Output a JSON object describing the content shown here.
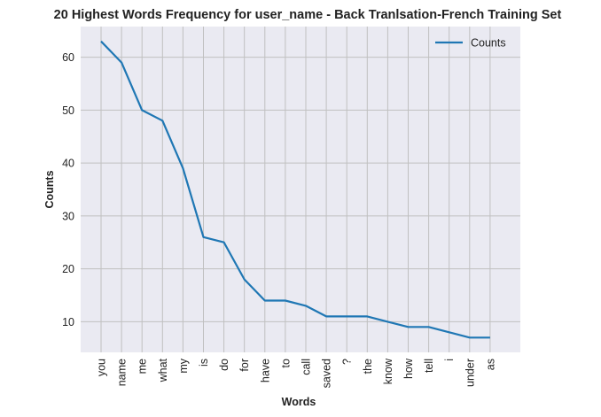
{
  "chart_data": {
    "type": "line",
    "title": "20 Highest Words Frequency for user_name - Back Tranlsation-French Training Set",
    "xlabel": "Words",
    "ylabel": "Counts",
    "categories": [
      "you",
      "name",
      "me",
      "what",
      "my",
      "is",
      "do",
      "for",
      "have",
      "to",
      "call",
      "saved",
      "?",
      "the",
      "know",
      "how",
      "tell",
      "i",
      "under",
      "as"
    ],
    "series": [
      {
        "name": "Counts",
        "values": [
          63,
          59,
          50,
          48,
          39,
          26,
          25,
          18,
          14,
          14,
          13,
          11,
          11,
          11,
          10,
          9,
          9,
          8,
          7,
          7
        ]
      }
    ],
    "yticks": [
      10,
      20,
      30,
      40,
      50,
      60
    ],
    "ylim": [
      4.2,
      65.8
    ],
    "grid": true,
    "legend_position": "top-right",
    "colors": {
      "line": "#1f77b4",
      "plot_background": "#eaeaf2",
      "grid": "#c0c0c0"
    }
  }
}
